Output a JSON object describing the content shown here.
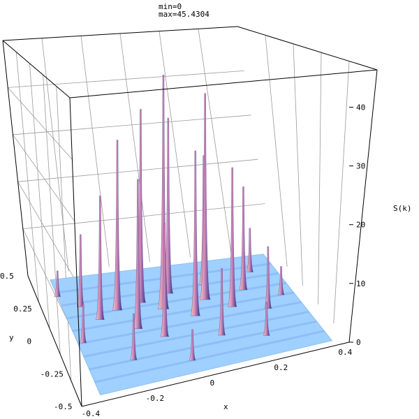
{
  "chart_data": {
    "type": "surface3d",
    "header": {
      "min_text": "min=0",
      "max_text": "max=45.4304"
    },
    "zlabel": "S(k)",
    "xlabel": "x",
    "ylabel": "y",
    "x_ticks": [
      "-0.4",
      "-0.2",
      "0",
      "0.2",
      "0.4"
    ],
    "y_ticks": [
      "0.5",
      "0.25",
      "0",
      "-0.25",
      "-0.5"
    ],
    "z_ticks": [
      "0",
      "10",
      "20",
      "30",
      "40"
    ],
    "zlim": [
      0,
      45.4304
    ],
    "xlim": [
      -0.5,
      0.5
    ],
    "ylim": [
      -0.5,
      0.5
    ],
    "peaks": [
      {
        "x": -0.05,
        "y": 0.1,
        "z": 45.4
      },
      {
        "x": 0.12,
        "y": 0.12,
        "z": 40.0
      },
      {
        "x": -0.12,
        "y": 0.18,
        "z": 37.5
      },
      {
        "x": -0.22,
        "y": 0.15,
        "z": 33.0
      },
      {
        "x": 0.05,
        "y": 0.0,
        "z": 32.0
      },
      {
        "x": 0.0,
        "y": 0.22,
        "z": 34.0
      },
      {
        "x": -0.18,
        "y": -0.02,
        "z": 29.0
      },
      {
        "x": 0.2,
        "y": 0.02,
        "z": 27.0
      },
      {
        "x": -0.3,
        "y": 0.1,
        "z": 24.0
      },
      {
        "x": 0.15,
        "y": 0.25,
        "z": 25.0
      },
      {
        "x": -0.1,
        "y": -0.12,
        "z": 22.0
      },
      {
        "x": 0.28,
        "y": 0.15,
        "z": 20.0
      },
      {
        "x": -0.35,
        "y": 0.22,
        "z": 14.0
      },
      {
        "x": 0.32,
        "y": -0.05,
        "z": 12.0
      },
      {
        "x": 0.1,
        "y": -0.2,
        "z": 13.0
      },
      {
        "x": -0.25,
        "y": -0.25,
        "z": 9.0
      },
      {
        "x": 0.35,
        "y": 0.3,
        "z": 8.5
      },
      {
        "x": -0.4,
        "y": -0.05,
        "z": 7.5
      },
      {
        "x": 0.25,
        "y": -0.28,
        "z": 6.5
      },
      {
        "x": -0.05,
        "y": -0.35,
        "z": 6.0
      },
      {
        "x": -0.42,
        "y": 0.32,
        "z": 5.0
      },
      {
        "x": 0.4,
        "y": 0.05,
        "z": 5.5
      }
    ],
    "colors": {
      "floor": "#9fd0ff",
      "floor_dark": "#7fb0ee",
      "peak_light": "#f7c8b8",
      "peak_mid": "#d08ab8",
      "peak_dark": "#2a2f8f",
      "box": "#000000",
      "grid": "#9a9a9a"
    }
  }
}
